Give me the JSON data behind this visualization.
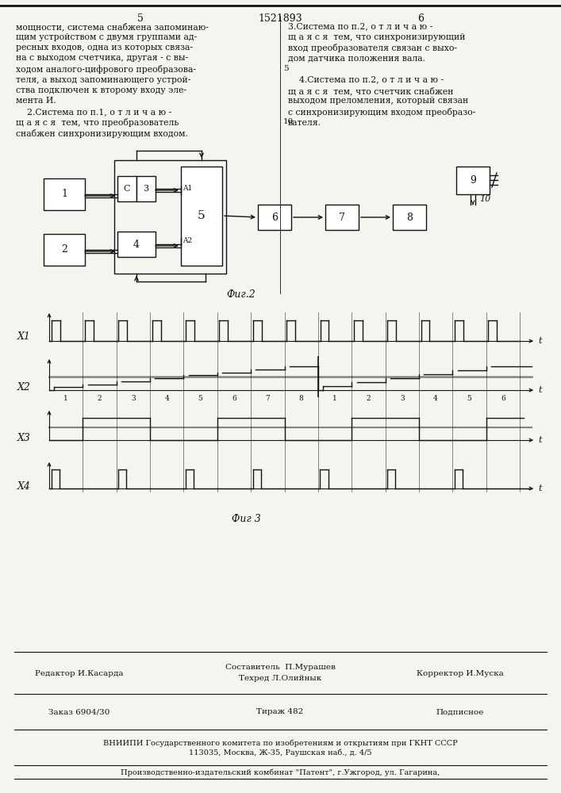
{
  "title_number": "1521893",
  "page_left": "5",
  "page_right": "6",
  "fig2_label": "Фиг.2",
  "fig3_label": "Фиг 3",
  "footer_editor": "Редактор И.Касарда",
  "footer_composer": "Составитель  П.Мурашев",
  "footer_tech": "Техред Л.Олийнык",
  "footer_corrector": "Корректор И.Муска",
  "footer_order": "Заказ 6904/30",
  "footer_circulation": "Тираж 482",
  "footer_signed": "Подписное",
  "footer_vniiipi": "ВНИИПИ Государственного комитета по изобретениям и открытиям при ГКНТ СССР",
  "footer_address": "113035, Москва, Ж-35, Раушская наб., д. 4/5",
  "footer_publisher": "Производственно-издательский комбинат \"Патент\", г.Ужгород, ул. Гагарина,",
  "bg_color": "#f5f5f0",
  "text_color": "#111111"
}
